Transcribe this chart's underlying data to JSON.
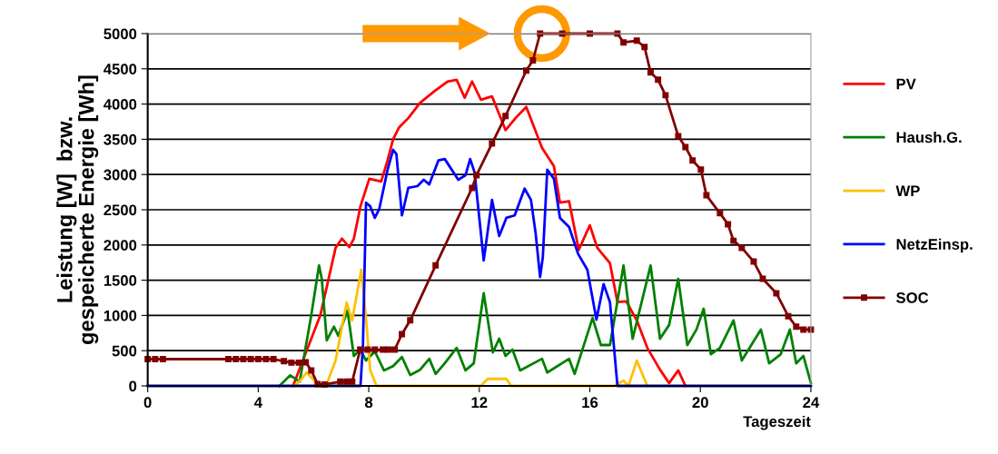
{
  "chart_data": {
    "type": "line",
    "xlabel": "Tageszeit",
    "ylabel": "Leistung [W]  bzw.\ngespeicherte Energie [Wh]",
    "xlim": [
      0,
      24
    ],
    "xticks": [
      0,
      4,
      8,
      12,
      16,
      20,
      24
    ],
    "ylim": [
      0,
      5000
    ],
    "yticks": [
      0,
      500,
      1000,
      1500,
      2000,
      2500,
      3000,
      3500,
      4000,
      4500,
      5000
    ],
    "grid": "y",
    "legend": "right",
    "marker": "none",
    "line_style": "solid",
    "series": [
      {
        "name": "PV",
        "color": "#ff0000",
        "x": [
          5.26,
          6.25,
          6.8,
          7.03,
          7.3,
          7.46,
          7.7,
          8.02,
          8.45,
          8.68,
          8.88,
          9.1,
          9.43,
          9.86,
          10.4,
          10.85,
          11.18,
          11.47,
          11.74,
          12.06,
          12.46,
          12.95,
          13.31,
          13.7,
          14.27,
          14.7,
          14.92,
          15.25,
          15.6,
          16.0,
          16.27,
          16.73,
          17.0,
          17.32,
          17.7,
          18.08,
          18.54,
          18.87,
          19.2,
          19.46
        ],
        "values": [
          0,
          1005,
          1960,
          2090,
          1970,
          2090,
          2550,
          2940,
          2900,
          3200,
          3500,
          3670,
          3800,
          4020,
          4190,
          4320,
          4345,
          4090,
          4320,
          4060,
          4110,
          3630,
          3800,
          3960,
          3380,
          3120,
          2600,
          2620,
          1930,
          2280,
          1960,
          1740,
          1190,
          1200,
          930,
          540,
          230,
          40,
          220,
          0
        ]
      },
      {
        "name": "Haush.G.",
        "color": "#008000",
        "x": [
          4.77,
          5.16,
          5.5,
          5.92,
          6.2,
          6.3,
          6.48,
          6.74,
          6.9,
          7.23,
          7.46,
          7.7,
          7.9,
          8.22,
          8.55,
          8.88,
          9.2,
          9.5,
          9.86,
          10.19,
          10.42,
          10.75,
          11.18,
          11.5,
          11.8,
          12.16,
          12.49,
          12.72,
          12.95,
          13.2,
          13.48,
          14.27,
          14.46,
          15.25,
          15.45,
          16.1,
          16.4,
          16.73,
          17.22,
          17.55,
          18.2,
          18.54,
          18.87,
          19.2,
          19.53,
          19.86,
          20.12,
          20.38,
          20.71,
          21.2,
          21.5,
          22.19,
          22.49,
          22.91,
          23.24,
          23.47,
          23.73,
          24.0
        ],
        "values": [
          0,
          150,
          60,
          1005,
          1710,
          1520,
          645,
          840,
          710,
          1070,
          425,
          515,
          360,
          490,
          220,
          280,
          410,
          155,
          230,
          385,
          170,
          320,
          540,
          220,
          320,
          1315,
          475,
          670,
          425,
          515,
          220,
          385,
          190,
          385,
          170,
          965,
          580,
          580,
          1710,
          670,
          1710,
          670,
          865,
          1520,
          580,
          800,
          1095,
          450,
          540,
          930,
          360,
          800,
          320,
          450,
          800,
          320,
          425,
          40
        ]
      },
      {
        "name": "WP",
        "color": "#ffc000",
        "x": [
          5.3,
          5.55,
          5.75,
          6.15,
          6.48,
          6.8,
          7.2,
          7.4,
          7.73,
          7.9,
          8.05,
          8.28,
          12.06,
          12.3,
          12.98,
          13.15,
          16.9,
          17.22,
          17.4,
          17.7,
          18.08
        ],
        "values": [
          0,
          90,
          190,
          25,
          25,
          360,
          1185,
          930,
          1650,
          965,
          230,
          0,
          0,
          100,
          100,
          0,
          0,
          75,
          0,
          360,
          0
        ]
      },
      {
        "name": "NetzEinsp.",
        "color": "#0000ff",
        "x": [
          0,
          7.7,
          7.79,
          7.9,
          8.05,
          8.22,
          8.38,
          8.68,
          8.88,
          9.0,
          9.2,
          9.43,
          9.76,
          9.99,
          10.19,
          10.52,
          10.75,
          11.24,
          11.5,
          11.67,
          11.83,
          12.16,
          12.46,
          12.72,
          12.98,
          13.28,
          13.64,
          13.87,
          14.04,
          14.2,
          14.3,
          14.46,
          14.7,
          14.92,
          15.25,
          15.58,
          15.91,
          16.24,
          16.5,
          16.73,
          17.0,
          24.0
        ],
        "values": [
          0,
          0,
          580,
          2600,
          2550,
          2385,
          2510,
          3065,
          3350,
          3290,
          2420,
          2810,
          2835,
          2925,
          2860,
          3200,
          3220,
          2925,
          2990,
          3220,
          3030,
          1780,
          2640,
          2125,
          2385,
          2420,
          2800,
          2640,
          2165,
          1545,
          1830,
          3070,
          2940,
          2385,
          2255,
          1870,
          1650,
          940,
          1445,
          1185,
          0,
          0
        ]
      },
      {
        "name": "SOC",
        "color": "#800000",
        "marker": "square",
        "x": [
          0,
          0.27,
          0.55,
          2.92,
          3.19,
          3.46,
          3.73,
          4.0,
          4.28,
          4.55,
          4.93,
          5.2,
          5.47,
          5.72,
          5.92,
          6.15,
          6.4,
          6.97,
          7.2,
          7.4,
          7.69,
          7.96,
          8.22,
          8.51,
          8.71,
          8.94,
          9.2,
          9.5,
          10.42,
          11.74,
          11.9,
          12.46,
          12.95,
          13.7,
          13.94,
          14.2,
          15.0,
          16.0,
          17.0,
          17.22,
          17.7,
          17.98,
          18.2,
          18.47,
          18.74,
          19.2,
          19.46,
          19.72,
          20.02,
          20.22,
          20.71,
          21.0,
          21.2,
          21.5,
          21.93,
          22.26,
          22.75,
          23.18,
          23.47,
          23.73,
          24.0
        ],
        "values": [
          380,
          380,
          380,
          380,
          380,
          380,
          380,
          380,
          380,
          380,
          350,
          330,
          330,
          335,
          220,
          25,
          20,
          60,
          60,
          60,
          515,
          515,
          515,
          515,
          515,
          515,
          735,
          930,
          1710,
          2810,
          2990,
          3440,
          3830,
          4475,
          4620,
          5000,
          5000,
          5000,
          5000,
          4875,
          4900,
          4810,
          4450,
          4345,
          4125,
          3545,
          3390,
          3200,
          3070,
          2705,
          2450,
          2295,
          2060,
          1960,
          1765,
          1520,
          1315,
          990,
          840,
          800,
          800
        ]
      }
    ]
  }
}
